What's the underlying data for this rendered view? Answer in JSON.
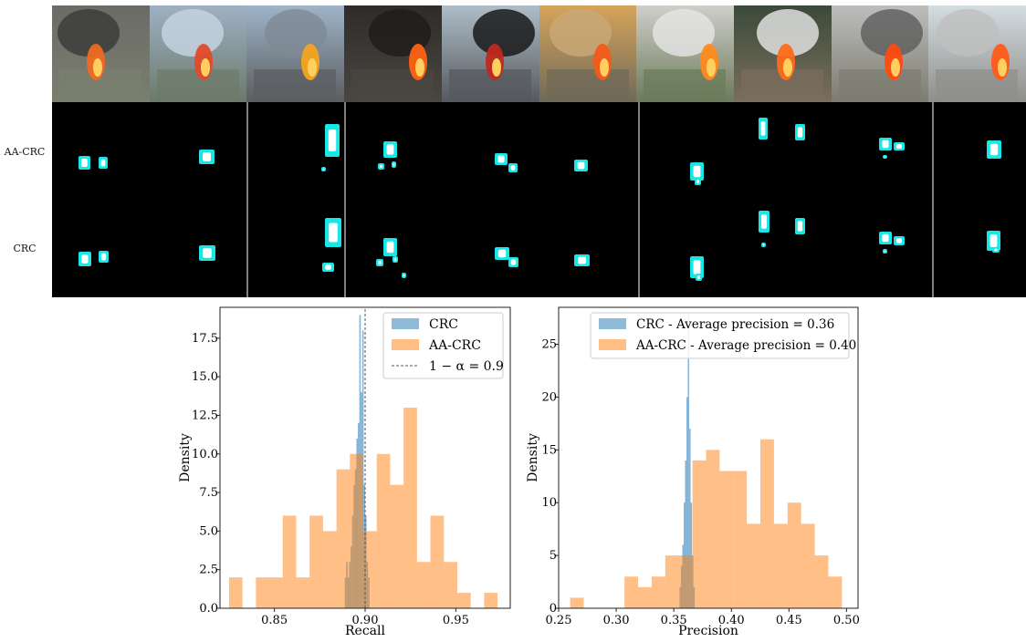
{
  "row_labels": [
    "AA-CRC",
    "CRC"
  ],
  "thumbnails": [
    {
      "sky": "#6b6b66",
      "ground": "#7a7f6e",
      "smoke": "#3a3a38",
      "fire": "#f06a20"
    },
    {
      "sky": "#9fb0c4",
      "ground": "#6c7a6a",
      "smoke": "#c8d6e2",
      "fire": "#e24a2a"
    },
    {
      "sky": "#9fb4c8",
      "ground": "#5b5d5f",
      "smoke": "#7e8a95",
      "fire": "#f4a41c"
    },
    {
      "sky": "#2f2b28",
      "ground": "#4a4642",
      "smoke": "#1e1c1a",
      "fire": "#ff6212"
    },
    {
      "sky": "#aebdc9",
      "ground": "#55595c",
      "smoke": "#111111",
      "fire": "#c0281e"
    },
    {
      "sky": "#d6a45a",
      "ground": "#6f6a58",
      "smoke": "#c9a978",
      "fire": "#f55a1a"
    },
    {
      "sky": "#cfcfca",
      "ground": "#6b7a5a",
      "smoke": "#e6e6e6",
      "fire": "#ff8a1e"
    },
    {
      "sky": "#3b4a3a",
      "ground": "#7a6e5c",
      "smoke": "#e8e8e8",
      "fire": "#ff6a1a"
    },
    {
      "sky": "#bdbdbd",
      "ground": "#7c7c70",
      "smoke": "#5c5c5c",
      "fire": "#ff4a10"
    },
    {
      "sky": "#d4dde2",
      "ground": "#8e8e8a",
      "smoke": "#bfbfbf",
      "fire": "#ff5a18"
    }
  ],
  "colors": {
    "crc": "#1f77b4",
    "aacrc": "#ff7f0e",
    "mask": "#19e6e6",
    "threshold": "#555555"
  },
  "chart_data": [
    {
      "type": "bar",
      "subtype": "histogram",
      "xlabel": "Recall",
      "ylabel": "Density",
      "xlim": [
        0.82,
        0.98
      ],
      "ylim": [
        0,
        19.5
      ],
      "xticks": [
        0.85,
        0.9,
        0.95
      ],
      "xtick_labels": [
        "0.85",
        "0.90",
        "0.95"
      ],
      "yticks": [
        0,
        2.5,
        5.0,
        7.5,
        10.0,
        12.5,
        15.0,
        17.5
      ],
      "ytick_labels": [
        "0.0",
        "2.5",
        "5.0",
        "7.5",
        "10.0",
        "12.5",
        "15.0",
        "17.5"
      ],
      "legend_position": "top-right",
      "series": [
        {
          "name": "CRC",
          "bin_width": 0.0008,
          "bin_left": [
            0.8888,
            0.8896,
            0.8904,
            0.8912,
            0.892,
            0.8928,
            0.8936,
            0.8944,
            0.8952,
            0.896,
            0.8968,
            0.8976,
            0.8984,
            0.8992,
            0.9,
            0.9008,
            0.9016
          ],
          "values": [
            2,
            3,
            2,
            3,
            4,
            6,
            8,
            9,
            11,
            12,
            19,
            14,
            18,
            8,
            6,
            3,
            2
          ]
        },
        {
          "name": "AA-CRC",
          "bin_width": 0.0074,
          "bin_left": [
            0.825,
            0.8324,
            0.8398,
            0.8472,
            0.8546,
            0.862,
            0.8694,
            0.8768,
            0.8842,
            0.8916,
            0.899,
            0.9064,
            0.9138,
            0.9212,
            0.9286,
            0.936,
            0.9434,
            0.9508,
            0.9582,
            0.9656
          ],
          "values": [
            2,
            0,
            2,
            2,
            6,
            2,
            6,
            5,
            9,
            10,
            5,
            10,
            8,
            13,
            3,
            6,
            3,
            1,
            0,
            1
          ]
        }
      ],
      "reference_line": {
        "name": "1 − α = 0.9",
        "x": 0.9
      }
    },
    {
      "type": "bar",
      "subtype": "histogram",
      "xlabel": "Precision",
      "ylabel": "Density",
      "xlim": [
        0.25,
        0.51
      ],
      "ylim": [
        0,
        28.5
      ],
      "xticks": [
        0.25,
        0.3,
        0.35,
        0.4,
        0.45,
        0.5
      ],
      "xtick_labels": [
        "0.25",
        "0.30",
        "0.35",
        "0.40",
        "0.45",
        "0.50"
      ],
      "yticks": [
        0,
        5,
        10,
        15,
        20,
        25
      ],
      "ytick_labels": [
        "0",
        "5",
        "10",
        "15",
        "20",
        "25"
      ],
      "legend_position": "top-right",
      "series": [
        {
          "name": "CRC - Average precision = 0.36",
          "bin_width": 0.0012,
          "bin_left": [
            0.355,
            0.3562,
            0.3574,
            0.3586,
            0.3598,
            0.361,
            0.3622,
            0.3634,
            0.3646,
            0.3658,
            0.367
          ],
          "values": [
            2,
            4,
            6,
            10,
            14,
            20,
            28,
            17,
            10,
            5,
            2
          ]
        },
        {
          "name": "AA-CRC - Average precision = 0.40",
          "bin_width": 0.0118,
          "bin_left": [
            0.26,
            0.2718,
            0.2836,
            0.2954,
            0.3072,
            0.319,
            0.3308,
            0.3426,
            0.3544,
            0.3662,
            0.378,
            0.3898,
            0.4016,
            0.4134,
            0.4252,
            0.437,
            0.4488,
            0.4606,
            0.4724,
            0.4842
          ],
          "values": [
            1,
            0,
            0,
            0,
            3,
            2,
            3,
            5,
            5,
            14,
            15,
            13,
            13,
            8,
            16,
            8,
            10,
            8,
            5,
            3
          ]
        }
      ]
    }
  ]
}
